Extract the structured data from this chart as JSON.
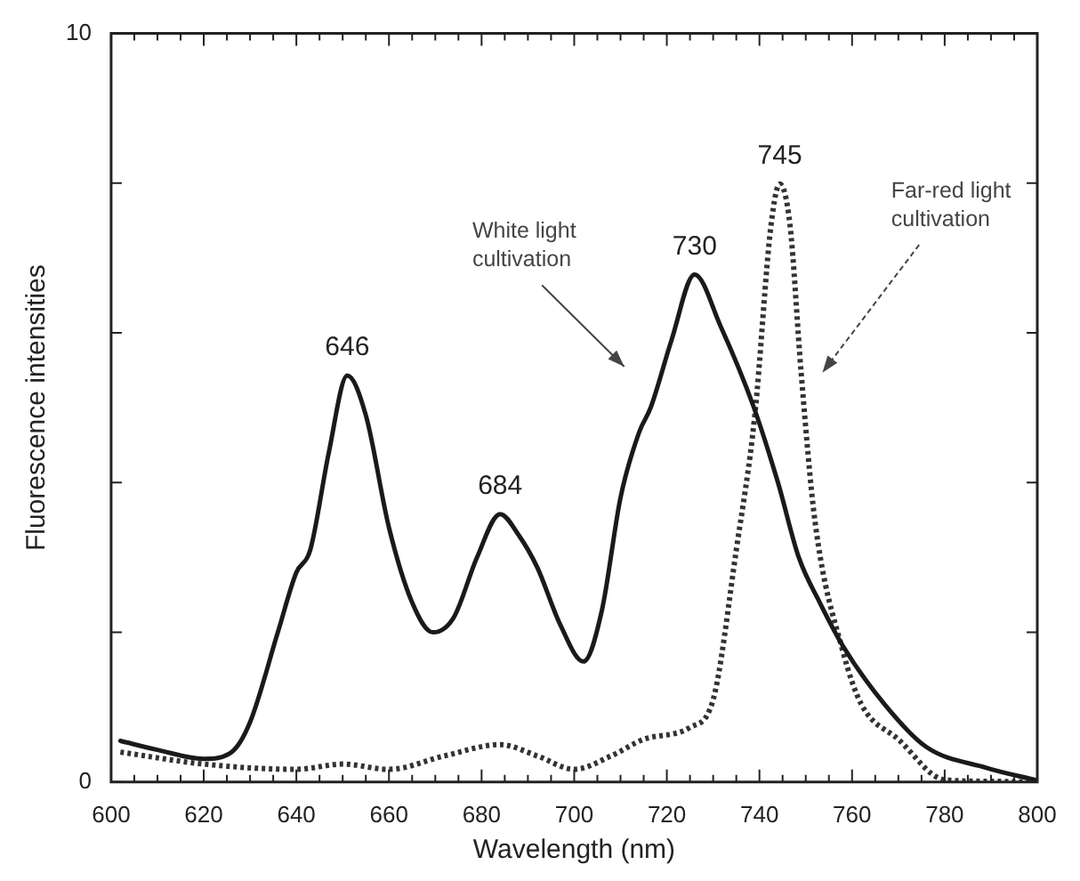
{
  "chart_data": {
    "type": "line",
    "xlabel": "Wavelength (nm)",
    "ylabel": "Fluorescence intensities",
    "xlim": [
      600,
      800
    ],
    "xticks": [
      600,
      620,
      640,
      660,
      680,
      700,
      720,
      740,
      760,
      780,
      800
    ],
    "ylim": [
      0,
      10
    ],
    "yticks": [
      0,
      {
        "value": 2,
        "label": null
      },
      {
        "value": 4,
        "label": null
      },
      {
        "value": 6,
        "label": null
      },
      {
        "value": 8,
        "label": null
      },
      10
    ],
    "grid": false,
    "legend": false,
    "marker": "none",
    "series": [
      {
        "color": "#1a1a1a",
        "line_style": "solid",
        "x": [
          602,
          610,
          620,
          626,
          630,
          636,
          640,
          643,
          647,
          651,
          655,
          660,
          665,
          669.5,
          674,
          679,
          684,
          688,
          692,
          697,
          702,
          706,
          710,
          714,
          716.5,
          721,
          726,
          731.6,
          738.7,
          744,
          748.5,
          753,
          758,
          767,
          776,
          789,
          800
        ],
        "values": [
          0.55,
          0.43,
          0.31,
          0.4,
          0.8,
          2.0,
          2.8,
          3.1,
          4.4,
          5.43,
          4.9,
          3.4,
          2.4,
          2.0,
          2.2,
          3.0,
          3.58,
          3.3,
          2.87,
          2.1,
          1.61,
          2.3,
          3.8,
          4.67,
          5.0,
          5.9,
          6.78,
          6.09,
          5.02,
          4.0,
          3.0,
          2.4,
          1.82,
          1.04,
          0.47,
          0.19,
          0.02
        ]
      },
      {
        "color": "#333333",
        "line_style": "dotted",
        "x": [
          602,
          620,
          640,
          650,
          660,
          672,
          684,
          692,
          700,
          708,
          715,
          725,
          730,
          735,
          739,
          742.5,
          744.4,
          746.6,
          749,
          752,
          758,
          762,
          770,
          780,
          790,
          800
        ],
        "values": [
          0.4,
          0.24,
          0.17,
          0.24,
          0.17,
          0.35,
          0.5,
          0.35,
          0.17,
          0.35,
          0.57,
          0.73,
          1.1,
          3.1,
          4.9,
          7.44,
          7.99,
          7.44,
          5.47,
          3.48,
          1.75,
          1.04,
          0.57,
          0.03,
          0.01,
          0
        ]
      }
    ],
    "annotations": [
      {
        "text": "646",
        "x": 651,
        "y": 5.43
      },
      {
        "text": "684",
        "x": 684,
        "y": 3.58
      },
      {
        "text": "730",
        "x": 726,
        "y": 6.78
      },
      {
        "text": "745",
        "x": 744.4,
        "y": 7.99
      },
      "White light cultivation",
      "Far-red light cultivation"
    ]
  }
}
